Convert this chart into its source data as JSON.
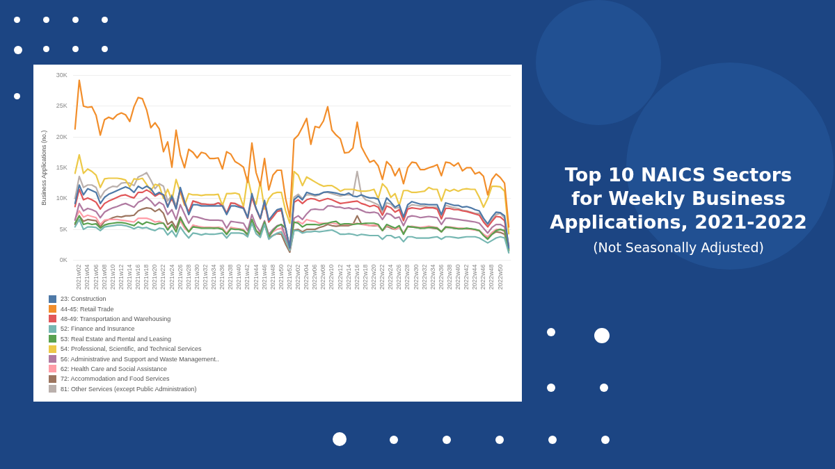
{
  "chart_data": {
    "type": "line",
    "title": "Top 10 NAICS Sectors for Weekly Business Applications, 2021-2022",
    "subtitle": "(Not Seasonally Adjusted)",
    "ylabel": "Business Applications (no.)",
    "categories": [
      null,
      "2021w02",
      null,
      "2021w04",
      null,
      "2021w06",
      null,
      "2021w08",
      null,
      "2021w10",
      null,
      "2021w12",
      null,
      "2021w14",
      null,
      "2021w16",
      null,
      "2021w18",
      null,
      "2021w20",
      null,
      "2021w22",
      null,
      "2021w24",
      null,
      "2021w26",
      null,
      "2021w28",
      null,
      "2021w30",
      null,
      "2021w32",
      null,
      "2021w34",
      null,
      "2021w36",
      null,
      "2021w38",
      null,
      "2021w40",
      null,
      "2021w42",
      null,
      "2021w44",
      null,
      "2021w46",
      null,
      "2021w48",
      null,
      "2021w50",
      null,
      "2021w52",
      null,
      "2022w02",
      null,
      "2022w04",
      null,
      "2022w06",
      null,
      "2022w08",
      null,
      "2022w10",
      null,
      "2022w12",
      null,
      "2022w14",
      null,
      "2022w16",
      null,
      "2022w18",
      null,
      "2022w20",
      null,
      "2022w22",
      null,
      "2022w24",
      null,
      "2022w26",
      null,
      "2022w28",
      null,
      "2022w30",
      null,
      "2022w32",
      null,
      "2022w34",
      null,
      "2022w36",
      null,
      "2022w38",
      null,
      "2022w40",
      null,
      "2022w42",
      null,
      "2022w44",
      null,
      "2022w46",
      null,
      "2022w48",
      null,
      "2022w50",
      null,
      null
    ],
    "ylim": [
      0,
      30
    ],
    "yticks": [
      {
        "value": 0,
        "label": "0K"
      },
      {
        "value": 5,
        "label": "5K"
      },
      {
        "value": 10,
        "label": "10K"
      },
      {
        "value": 15,
        "label": "15K"
      },
      {
        "value": 20,
        "label": "20K"
      },
      {
        "value": 25,
        "label": "25K"
      },
      {
        "value": 30,
        "label": "30K"
      }
    ],
    "grid": "y",
    "legend": "bottom left",
    "marker": "none",
    "line_style": "solid",
    "series": [
      {
        "name": "23: Construction",
        "color": "#4e79a7",
        "values": [
          9.2,
          12.2,
          10.6,
          11.6,
          11.3,
          11.0,
          9.2,
          10.2,
          10.7,
          11.0,
          11.3,
          11.6,
          11.9,
          11.6,
          11.0,
          12.0,
          11.6,
          12.0,
          11.6,
          10.6,
          11.0,
          10.6,
          8.6,
          10.4,
          8.3,
          11.8,
          9.5,
          7.4,
          9.0,
          9.0,
          8.8,
          8.8,
          8.8,
          8.8,
          8.8,
          8.8,
          7.4,
          8.8,
          8.8,
          8.6,
          8.4,
          6.9,
          10.8,
          8.4,
          6.8,
          9.7,
          6.5,
          7.4,
          8.2,
          8.4,
          5.2,
          2.0,
          9.8,
          10.4,
          9.8,
          11.0,
          10.8,
          10.6,
          10.7,
          11.0,
          11.1,
          11.0,
          10.9,
          10.7,
          10.6,
          10.9,
          10.4,
          10.3,
          10.6,
          10.3,
          10.1,
          10.1,
          9.9,
          8.2,
          10.1,
          9.4,
          8.6,
          9.0,
          7.0,
          9.0,
          9.5,
          9.3,
          9.1,
          9.1,
          9.0,
          9.0,
          9.0,
          7.4,
          9.3,
          9.1,
          8.9,
          8.9,
          8.6,
          8.7,
          8.5,
          8.2,
          8.0,
          6.8,
          5.9,
          7.0,
          7.8,
          7.7,
          7.2,
          2.0
        ]
      },
      {
        "name": "44-45: Retail Trade",
        "color": "#f28e2b",
        "values": [
          21.3,
          29.2,
          25.0,
          24.8,
          24.9,
          23.5,
          20.3,
          22.8,
          23.2,
          22.9,
          23.6,
          23.9,
          23.6,
          22.5,
          24.9,
          26.4,
          26.2,
          24.4,
          21.5,
          22.3,
          21.3,
          17.6,
          19.2,
          15.1,
          21.1,
          17.1,
          15.0,
          18.0,
          17.5,
          16.6,
          17.5,
          17.3,
          16.5,
          16.5,
          16.6,
          14.8,
          17.6,
          17.2,
          16.0,
          15.6,
          15.1,
          12.6,
          19.0,
          14.2,
          12.1,
          16.5,
          11.4,
          13.8,
          14.6,
          14.6,
          10.0,
          7.0,
          19.6,
          20.3,
          21.6,
          23.0,
          18.8,
          21.7,
          21.5,
          22.6,
          24.9,
          21.1,
          20.3,
          19.7,
          17.4,
          17.5,
          18.2,
          22.4,
          18.4,
          17.1,
          15.9,
          16.2,
          15.3,
          13.1,
          16.0,
          15.3,
          13.7,
          14.9,
          12.4,
          15.0,
          15.9,
          15.8,
          14.7,
          14.7,
          15.0,
          15.2,
          15.5,
          13.7,
          15.9,
          15.8,
          15.3,
          15.8,
          14.5,
          15.0,
          15.0,
          14.0,
          14.3,
          13.6,
          10.6,
          13.1,
          14.0,
          13.4,
          12.5,
          5.4
        ]
      },
      {
        "name": "48-49: Transportation and Warehousing",
        "color": "#e15759",
        "values": [
          8.7,
          11.5,
          9.8,
          10.1,
          9.8,
          9.4,
          8.3,
          9.2,
          9.6,
          9.9,
          10.2,
          10.5,
          10.6,
          10.3,
          10.1,
          11.0,
          11.0,
          11.4,
          11.0,
          10.4,
          10.8,
          10.6,
          8.8,
          10.0,
          8.4,
          11.5,
          9.2,
          7.8,
          9.6,
          9.4,
          9.1,
          9.1,
          9.0,
          9.0,
          9.3,
          8.8,
          7.6,
          9.3,
          9.2,
          8.8,
          8.5,
          6.8,
          10.2,
          8.3,
          6.7,
          9.4,
          6.2,
          7.0,
          7.9,
          8.1,
          5.0,
          2.0,
          9.4,
          9.8,
          9.2,
          9.8,
          10.0,
          9.9,
          9.6,
          9.8,
          10.0,
          9.8,
          9.5,
          9.2,
          9.3,
          9.4,
          9.5,
          9.6,
          9.2,
          9.0,
          8.7,
          8.9,
          8.6,
          7.3,
          8.8,
          8.5,
          7.8,
          8.2,
          6.4,
          8.3,
          8.5,
          8.4,
          8.3,
          8.5,
          8.5,
          8.5,
          8.3,
          6.7,
          8.4,
          8.4,
          8.2,
          8.2,
          8.0,
          7.9,
          7.7,
          7.5,
          7.3,
          6.2,
          5.4,
          6.3,
          7.1,
          7.0,
          6.4,
          2.3
        ]
      },
      {
        "name": "52: Finance and Insurance",
        "color": "#76b7b2",
        "values": [
          5.4,
          6.6,
          5.0,
          5.4,
          5.4,
          5.3,
          4.8,
          5.4,
          5.5,
          5.6,
          5.7,
          5.7,
          5.6,
          5.4,
          5.1,
          5.4,
          5.2,
          5.3,
          5.0,
          4.8,
          5.2,
          5.1,
          4.1,
          4.8,
          3.8,
          5.4,
          4.4,
          3.6,
          4.4,
          4.3,
          4.1,
          4.3,
          4.2,
          4.2,
          4.3,
          4.4,
          3.6,
          4.4,
          4.4,
          4.4,
          4.3,
          3.8,
          6.0,
          4.3,
          3.7,
          5.8,
          3.4,
          4.0,
          4.4,
          4.6,
          3.2,
          1.6,
          4.8,
          4.8,
          4.4,
          4.6,
          4.6,
          4.7,
          4.6,
          4.7,
          4.8,
          4.9,
          4.6,
          4.2,
          4.2,
          4.3,
          4.2,
          4.0,
          4.2,
          4.1,
          4.0,
          4.0,
          4.0,
          3.4,
          4.0,
          4.0,
          3.6,
          3.8,
          3.0,
          3.8,
          3.8,
          3.6,
          3.6,
          3.6,
          3.6,
          3.7,
          3.8,
          3.4,
          3.8,
          3.8,
          3.7,
          3.6,
          3.7,
          3.8,
          3.8,
          3.8,
          3.6,
          3.2,
          2.8,
          3.2,
          3.6,
          3.8,
          3.6,
          1.2
        ]
      },
      {
        "name": "53: Real Estate and Rental and Leasing",
        "color": "#59a14f",
        "values": [
          6.0,
          7.2,
          5.8,
          6.0,
          5.8,
          5.9,
          5.2,
          5.7,
          5.9,
          6.0,
          6.1,
          6.1,
          6.0,
          5.8,
          5.6,
          6.2,
          5.8,
          6.2,
          6.0,
          5.8,
          6.0,
          6.0,
          4.9,
          5.8,
          4.6,
          6.8,
          5.6,
          4.6,
          5.4,
          5.3,
          5.2,
          5.2,
          5.2,
          5.2,
          5.2,
          5.0,
          4.2,
          5.1,
          5.0,
          5.0,
          4.8,
          4.2,
          6.6,
          4.8,
          4.2,
          6.2,
          3.8,
          4.8,
          5.5,
          5.8,
          5.2,
          2.0,
          6.2,
          6.0,
          5.4,
          5.8,
          5.8,
          5.8,
          5.7,
          5.9,
          6.0,
          6.2,
          6.3,
          5.8,
          5.9,
          5.9,
          5.8,
          5.9,
          5.9,
          6.0,
          6.0,
          6.0,
          5.8,
          4.8,
          5.8,
          5.5,
          5.2,
          5.6,
          4.2,
          5.5,
          5.4,
          5.3,
          5.2,
          5.2,
          5.3,
          5.3,
          5.2,
          4.6,
          5.4,
          5.3,
          5.2,
          5.1,
          5.1,
          5.2,
          5.1,
          5.0,
          4.8,
          4.0,
          3.4,
          4.2,
          4.8,
          5.0,
          4.8,
          1.6
        ]
      },
      {
        "name": "54: Professional, Scientific, and Technical Services",
        "color": "#edc948",
        "values": [
          14.1,
          17.1,
          14.1,
          14.8,
          14.4,
          13.8,
          11.8,
          13.2,
          13.3,
          13.3,
          13.3,
          13.2,
          13.0,
          11.9,
          13.2,
          13.1,
          13.3,
          12.3,
          11.3,
          12.3,
          12.1,
          10.0,
          11.5,
          9.7,
          13.1,
          11.0,
          8.9,
          10.8,
          10.6,
          10.6,
          10.5,
          10.6,
          10.6,
          10.6,
          10.7,
          8.9,
          10.8,
          10.8,
          10.9,
          10.7,
          8.7,
          13.5,
          10.4,
          9.1,
          12.7,
          8.3,
          10.0,
          10.8,
          11.0,
          11.0,
          8.0,
          6.0,
          14.4,
          13.8,
          12.1,
          13.5,
          13.1,
          12.7,
          12.3,
          12.0,
          12.1,
          12.1,
          11.7,
          11.2,
          11.5,
          11.5,
          11.5,
          11.3,
          11.2,
          11.2,
          11.3,
          11.5,
          10.0,
          12.4,
          11.7,
          10.2,
          10.8,
          8.9,
          11.3,
          11.3,
          11.0,
          11.0,
          11.1,
          11.2,
          11.8,
          11.5,
          11.5,
          9.6,
          11.5,
          11.2,
          11.5,
          11.2,
          11.5,
          11.6,
          11.5,
          11.5,
          10.2,
          8.6,
          10.0,
          12.0,
          12.0,
          11.9,
          11.2,
          4.3
        ]
      },
      {
        "name": "56: Administrative and Support and Waste Management..",
        "color": "#b07aa1",
        "values": [
          6.5,
          9.2,
          8.0,
          8.4,
          8.2,
          7.9,
          6.9,
          7.8,
          8.2,
          8.5,
          8.7,
          9.0,
          9.2,
          8.9,
          8.6,
          9.4,
          9.7,
          10.2,
          9.6,
          8.8,
          9.4,
          9.0,
          7.4,
          8.2,
          6.6,
          9.0,
          7.5,
          6.0,
          7.1,
          7.0,
          6.8,
          6.6,
          6.5,
          6.5,
          6.5,
          6.4,
          5.2,
          6.3,
          6.2,
          6.1,
          6.0,
          4.8,
          7.4,
          5.6,
          4.6,
          6.4,
          4.2,
          5.0,
          5.6,
          5.8,
          3.8,
          1.8,
          6.8,
          7.2,
          6.6,
          7.5,
          8.2,
          8.3,
          8.2,
          8.2,
          8.8,
          8.8,
          8.6,
          8.6,
          8.4,
          8.5,
          8.3,
          8.4,
          8.1,
          7.8,
          7.7,
          7.8,
          7.6,
          6.6,
          7.6,
          7.4,
          6.8,
          7.0,
          5.6,
          7.0,
          7.2,
          7.1,
          6.9,
          7.0,
          7.1,
          7.0,
          6.9,
          5.8,
          6.8,
          6.8,
          6.7,
          6.6,
          6.5,
          6.4,
          6.3,
          6.2,
          6.0,
          5.2,
          4.4,
          5.3,
          5.8,
          5.8,
          5.4,
          1.8
        ]
      },
      {
        "name": "62: Health Care and Social Assistance",
        "color": "#ff9da7",
        "values": [
          6.6,
          8.0,
          7.0,
          7.3,
          7.1,
          6.9,
          5.8,
          6.5,
          6.6,
          6.6,
          6.6,
          6.5,
          6.4,
          6.3,
          6.2,
          6.8,
          6.8,
          6.8,
          6.6,
          6.2,
          6.3,
          6.0,
          5.2,
          5.8,
          4.8,
          6.4,
          5.2,
          4.6,
          5.7,
          5.5,
          5.4,
          5.3,
          5.3,
          5.3,
          5.3,
          5.2,
          4.4,
          5.3,
          5.2,
          5.1,
          5.0,
          4.2,
          6.4,
          4.8,
          4.5,
          6.0,
          3.8,
          4.6,
          5.0,
          5.2,
          3.6,
          1.6,
          6.0,
          6.3,
          5.9,
          6.6,
          6.4,
          6.3,
          6.0,
          6.0,
          6.0,
          6.0,
          5.9,
          5.8,
          5.8,
          5.8,
          5.9,
          6.0,
          5.8,
          5.7,
          5.6,
          5.7,
          5.6,
          4.8,
          5.6,
          5.4,
          5.0,
          5.3,
          4.4,
          5.4,
          5.5,
          5.4,
          5.3,
          5.4,
          5.5,
          5.4,
          5.3,
          4.6,
          5.4,
          5.4,
          5.3,
          5.2,
          5.2,
          5.1,
          5.0,
          4.9,
          4.8,
          4.2,
          3.8,
          4.5,
          5.0,
          5.0,
          4.6,
          1.8
        ]
      },
      {
        "name": "72: Accommodation and Food Services",
        "color": "#9c755f",
        "values": [
          5.8,
          7.2,
          6.3,
          6.6,
          6.5,
          6.4,
          5.4,
          6.3,
          6.6,
          6.9,
          7.1,
          7.0,
          7.2,
          7.2,
          7.3,
          8.0,
          8.3,
          8.5,
          8.4,
          7.9,
          8.3,
          7.6,
          5.8,
          6.3,
          5.2,
          7.0,
          5.6,
          4.6,
          5.6,
          5.5,
          5.3,
          5.3,
          5.3,
          5.2,
          5.3,
          5.2,
          4.2,
          5.3,
          5.1,
          5.0,
          4.9,
          4.0,
          6.6,
          4.8,
          4.0,
          6.0,
          3.6,
          4.0,
          4.3,
          4.2,
          2.6,
          1.3,
          4.9,
          5.0,
          4.6,
          5.0,
          5.0,
          5.0,
          5.3,
          5.5,
          5.8,
          5.6,
          5.5,
          5.6,
          5.6,
          5.6,
          5.8,
          7.2,
          5.9,
          5.8,
          5.6,
          5.6,
          5.6,
          4.8,
          5.5,
          5.2,
          5.0,
          5.3,
          4.4,
          5.4,
          5.4,
          5.3,
          5.2,
          5.3,
          5.3,
          5.2,
          5.1,
          4.6,
          5.3,
          5.3,
          5.2,
          5.1,
          5.1,
          5.1,
          5.1,
          4.9,
          4.8,
          4.2,
          3.6,
          4.2,
          4.6,
          4.5,
          4.2,
          1.5
        ]
      },
      {
        "name": "81: Other Services (except Public Administration)",
        "color": "#bab0ac",
        "values": [
          10.0,
          13.6,
          11.8,
          12.2,
          12.2,
          11.8,
          10.1,
          11.2,
          11.7,
          12.0,
          11.9,
          12.5,
          12.6,
          12.5,
          12.1,
          13.5,
          13.8,
          14.2,
          13.0,
          11.6,
          12.4,
          12.0,
          9.6,
          10.6,
          8.8,
          11.5,
          9.6,
          7.8,
          9.6,
          9.4,
          9.2,
          9.1,
          9.0,
          9.1,
          9.3,
          9.2,
          7.6,
          9.2,
          9.2,
          8.9,
          8.6,
          7.0,
          10.2,
          8.4,
          6.8,
          9.4,
          6.2,
          7.2,
          8.0,
          8.3,
          5.0,
          2.1,
          10.2,
          10.7,
          10.0,
          10.6,
          10.6,
          10.4,
          10.6,
          11.0,
          11.0,
          10.8,
          10.6,
          10.4,
          10.6,
          10.6,
          10.6,
          14.4,
          10.6,
          9.8,
          9.6,
          9.3,
          9.0,
          7.8,
          9.3,
          9.1,
          8.4,
          8.6,
          6.7,
          8.6,
          9.0,
          8.9,
          8.8,
          8.8,
          8.6,
          8.6,
          8.6,
          7.2,
          8.9,
          8.7,
          8.5,
          8.4,
          8.1,
          8.0,
          7.8,
          7.6,
          7.6,
          6.4,
          5.6,
          6.6,
          7.4,
          7.6,
          6.8,
          1.8
        ]
      }
    ]
  }
}
